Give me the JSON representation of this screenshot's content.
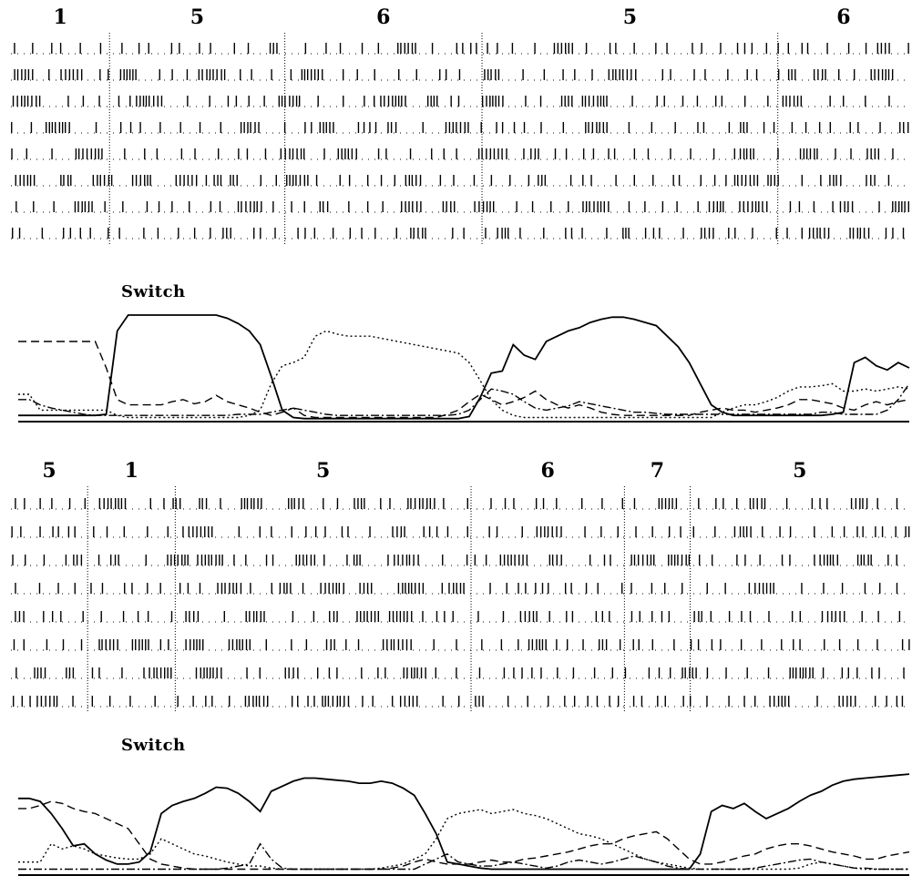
{
  "chart_data": [
    {
      "type": "raster-with-lines",
      "segments": [
        {
          "label": "1",
          "start": 0,
          "end": 9
        },
        {
          "label": "5",
          "start": 9,
          "end": 25
        },
        {
          "label": "6",
          "start": 25,
          "end": 43
        },
        {
          "label": "5",
          "start": 43,
          "end": 70
        },
        {
          "label": "6",
          "start": 70,
          "end": 82
        }
      ],
      "timeline_length": 82,
      "raster_rows": 8,
      "switch_marker": {
        "label": "Switch",
        "position": 13
      },
      "series": [
        {
          "style": "solid",
          "values": [
            0.05,
            0.05,
            0.05,
            0.05,
            0.05,
            0.05,
            0.05,
            0.05,
            0.06,
            0.85,
            1.0,
            1.0,
            1.0,
            1.0,
            1.0,
            1.0,
            1.0,
            1.0,
            1.0,
            0.97,
            0.92,
            0.85,
            0.72,
            0.42,
            0.1,
            0.03,
            0.02,
            0.02,
            0.02,
            0.02,
            0.02,
            0.02,
            0.02,
            0.02,
            0.02,
            0.02,
            0.02,
            0.02,
            0.02,
            0.02,
            0.02,
            0.04,
            0.22,
            0.45,
            0.47,
            0.72,
            0.62,
            0.58,
            0.75,
            0.8,
            0.85,
            0.88,
            0.93,
            0.96,
            0.98,
            0.98,
            0.96,
            0.93,
            0.9,
            0.8,
            0.7,
            0.55,
            0.35,
            0.15,
            0.08,
            0.05,
            0.05,
            0.05,
            0.05,
            0.05,
            0.05,
            0.05,
            0.05,
            0.05,
            0.06,
            0.08,
            0.55,
            0.6,
            0.52,
            0.48,
            0.55,
            0.5
          ]
        },
        {
          "style": "dotted",
          "values": [
            0.25,
            0.25,
            0.1,
            0.1,
            0.1,
            0.1,
            0.1,
            0.1,
            0.1,
            0.05,
            0.03,
            0.03,
            0.03,
            0.03,
            0.03,
            0.03,
            0.03,
            0.03,
            0.03,
            0.03,
            0.03,
            0.05,
            0.1,
            0.35,
            0.52,
            0.55,
            0.6,
            0.8,
            0.85,
            0.82,
            0.8,
            0.8,
            0.8,
            0.78,
            0.76,
            0.74,
            0.72,
            0.7,
            0.68,
            0.66,
            0.64,
            0.55,
            0.38,
            0.2,
            0.1,
            0.05,
            0.03,
            0.03,
            0.03,
            0.03,
            0.03,
            0.03,
            0.03,
            0.03,
            0.03,
            0.03,
            0.03,
            0.03,
            0.03,
            0.03,
            0.03,
            0.03,
            0.03,
            0.03,
            0.08,
            0.12,
            0.15,
            0.15,
            0.18,
            0.22,
            0.28,
            0.32,
            0.32,
            0.33,
            0.35,
            0.28,
            0.28,
            0.3,
            0.28,
            0.3,
            0.32,
            0.3
          ]
        },
        {
          "style": "dashed",
          "values": [
            0.75,
            0.75,
            0.75,
            0.75,
            0.75,
            0.75,
            0.75,
            0.75,
            0.5,
            0.2,
            0.15,
            0.15,
            0.15,
            0.15,
            0.18,
            0.2,
            0.16,
            0.18,
            0.24,
            0.18,
            0.15,
            0.12,
            0.08,
            0.05,
            0.08,
            0.12,
            0.05,
            0.03,
            0.03,
            0.03,
            0.03,
            0.03,
            0.03,
            0.03,
            0.03,
            0.03,
            0.03,
            0.03,
            0.03,
            0.06,
            0.1,
            0.18,
            0.25,
            0.2,
            0.15,
            0.18,
            0.22,
            0.28,
            0.2,
            0.15,
            0.12,
            0.15,
            0.12,
            0.08,
            0.06,
            0.05,
            0.05,
            0.05,
            0.05,
            0.05,
            0.05,
            0.05,
            0.08,
            0.1,
            0.12,
            0.1,
            0.1,
            0.08,
            0.1,
            0.12,
            0.15,
            0.2,
            0.2,
            0.18,
            0.16,
            0.12,
            0.1,
            0.15,
            0.18,
            0.15,
            0.18,
            0.2
          ]
        },
        {
          "style": "dashdot",
          "values": [
            0.2,
            0.2,
            0.15,
            0.12,
            0.1,
            0.08,
            0.06,
            0.05,
            0.05,
            0.05,
            0.05,
            0.05,
            0.05,
            0.05,
            0.05,
            0.05,
            0.05,
            0.05,
            0.05,
            0.05,
            0.06,
            0.06,
            0.06,
            0.08,
            0.1,
            0.12,
            0.1,
            0.08,
            0.06,
            0.05,
            0.05,
            0.05,
            0.05,
            0.05,
            0.05,
            0.05,
            0.05,
            0.05,
            0.05,
            0.05,
            0.06,
            0.1,
            0.2,
            0.3,
            0.28,
            0.25,
            0.18,
            0.12,
            0.1,
            0.12,
            0.14,
            0.18,
            0.16,
            0.14,
            0.12,
            0.1,
            0.08,
            0.08,
            0.07,
            0.06,
            0.06,
            0.06,
            0.06,
            0.06,
            0.06,
            0.06,
            0.06,
            0.06,
            0.06,
            0.06,
            0.06,
            0.06,
            0.06,
            0.08,
            0.08,
            0.06,
            0.06,
            0.06,
            0.06,
            0.1,
            0.2,
            0.35
          ]
        }
      ]
    },
    {
      "type": "raster-with-lines",
      "segments": [
        {
          "label": "5",
          "start": 0,
          "end": 7
        },
        {
          "label": "1",
          "start": 7,
          "end": 15
        },
        {
          "label": "5",
          "start": 15,
          "end": 42
        },
        {
          "label": "6",
          "start": 42,
          "end": 56
        },
        {
          "label": "7",
          "start": 56,
          "end": 62
        },
        {
          "label": "5",
          "start": 62,
          "end": 82
        }
      ],
      "timeline_length": 82,
      "raster_rows": 8,
      "switch_marker": {
        "label": "Switch",
        "position": 13
      },
      "series": [
        {
          "style": "solid",
          "values": [
            0.75,
            0.75,
            0.72,
            0.6,
            0.45,
            0.28,
            0.3,
            0.2,
            0.14,
            0.1,
            0.1,
            0.12,
            0.22,
            0.6,
            0.68,
            0.72,
            0.75,
            0.8,
            0.86,
            0.85,
            0.8,
            0.72,
            0.62,
            0.82,
            0.87,
            0.92,
            0.95,
            0.95,
            0.94,
            0.93,
            0.92,
            0.9,
            0.9,
            0.92,
            0.9,
            0.85,
            0.78,
            0.6,
            0.4,
            0.12,
            0.1,
            0.08,
            0.06,
            0.05,
            0.05,
            0.05,
            0.05,
            0.05,
            0.05,
            0.05,
            0.05,
            0.05,
            0.05,
            0.05,
            0.05,
            0.05,
            0.05,
            0.05,
            0.05,
            0.05,
            0.05,
            0.05,
            0.2,
            0.62,
            0.68,
            0.65,
            0.7,
            0.62,
            0.55,
            0.6,
            0.65,
            0.72,
            0.78,
            0.82,
            0.88,
            0.92,
            0.94,
            0.95,
            0.96,
            0.97,
            0.98,
            0.99
          ]
        },
        {
          "style": "dashed",
          "values": [
            0.65,
            0.65,
            0.68,
            0.72,
            0.7,
            0.65,
            0.62,
            0.6,
            0.55,
            0.5,
            0.45,
            0.3,
            0.15,
            0.1,
            0.08,
            0.06,
            0.05,
            0.05,
            0.05,
            0.05,
            0.05,
            0.05,
            0.05,
            0.05,
            0.05,
            0.05,
            0.05,
            0.05,
            0.05,
            0.05,
            0.05,
            0.05,
            0.05,
            0.05,
            0.06,
            0.08,
            0.12,
            0.15,
            0.12,
            0.1,
            0.1,
            0.1,
            0.12,
            0.14,
            0.12,
            0.12,
            0.15,
            0.16,
            0.18,
            0.2,
            0.22,
            0.25,
            0.28,
            0.3,
            0.3,
            0.35,
            0.38,
            0.4,
            0.42,
            0.35,
            0.25,
            0.15,
            0.1,
            0.1,
            0.12,
            0.15,
            0.18,
            0.2,
            0.25,
            0.28,
            0.3,
            0.3,
            0.28,
            0.25,
            0.22,
            0.2,
            0.18,
            0.15,
            0.15,
            0.18,
            0.2,
            0.22
          ]
        },
        {
          "style": "dotted",
          "values": [
            0.12,
            0.12,
            0.12,
            0.3,
            0.25,
            0.28,
            0.25,
            0.2,
            0.18,
            0.16,
            0.15,
            0.15,
            0.2,
            0.35,
            0.3,
            0.25,
            0.2,
            0.18,
            0.15,
            0.12,
            0.1,
            0.08,
            0.08,
            0.06,
            0.05,
            0.05,
            0.05,
            0.05,
            0.05,
            0.05,
            0.05,
            0.05,
            0.05,
            0.06,
            0.08,
            0.1,
            0.15,
            0.2,
            0.35,
            0.55,
            0.6,
            0.62,
            0.64,
            0.6,
            0.62,
            0.64,
            0.6,
            0.58,
            0.55,
            0.5,
            0.45,
            0.4,
            0.38,
            0.35,
            0.3,
            0.25,
            0.2,
            0.15,
            0.12,
            0.1,
            0.08,
            0.06,
            0.05,
            0.05,
            0.05,
            0.05,
            0.05,
            0.05,
            0.05,
            0.05,
            0.05,
            0.06,
            0.1,
            0.12,
            0.1,
            0.08,
            0.06,
            0.05,
            0.05,
            0.05,
            0.05,
            0.05
          ]
        },
        {
          "style": "dashdot",
          "values": [
            0.05,
            0.05,
            0.05,
            0.05,
            0.05,
            0.05,
            0.05,
            0.05,
            0.05,
            0.05,
            0.05,
            0.05,
            0.05,
            0.05,
            0.05,
            0.05,
            0.05,
            0.05,
            0.05,
            0.06,
            0.08,
            0.1,
            0.3,
            0.15,
            0.06,
            0.05,
            0.05,
            0.05,
            0.05,
            0.05,
            0.05,
            0.05,
            0.05,
            0.05,
            0.05,
            0.05,
            0.05,
            0.1,
            0.15,
            0.2,
            0.12,
            0.1,
            0.08,
            0.08,
            0.1,
            0.12,
            0.1,
            0.08,
            0.06,
            0.08,
            0.12,
            0.14,
            0.12,
            0.1,
            0.12,
            0.15,
            0.18,
            0.15,
            0.12,
            0.08,
            0.06,
            0.05,
            0.05,
            0.05,
            0.05,
            0.05,
            0.05,
            0.06,
            0.08,
            0.1,
            0.12,
            0.14,
            0.15,
            0.12,
            0.1,
            0.08,
            0.06,
            0.06,
            0.05,
            0.05,
            0.05,
            0.05
          ]
        }
      ]
    }
  ]
}
